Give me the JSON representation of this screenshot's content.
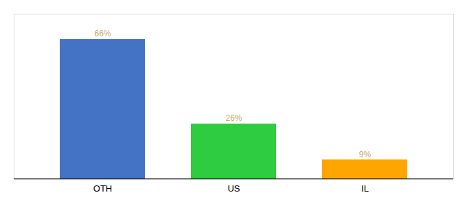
{
  "chart_data": {
    "type": "bar",
    "categories": [
      "OTH",
      "US",
      "IL"
    ],
    "values": [
      66,
      26,
      9
    ],
    "value_labels": [
      "66%",
      "26%",
      "9%"
    ],
    "data_labels": true,
    "colors": [
      "#4472C4",
      "#2ECC40",
      "#FFA500"
    ],
    "ylim": [
      0,
      78
    ],
    "tick_labels": "x",
    "grid": false
  }
}
